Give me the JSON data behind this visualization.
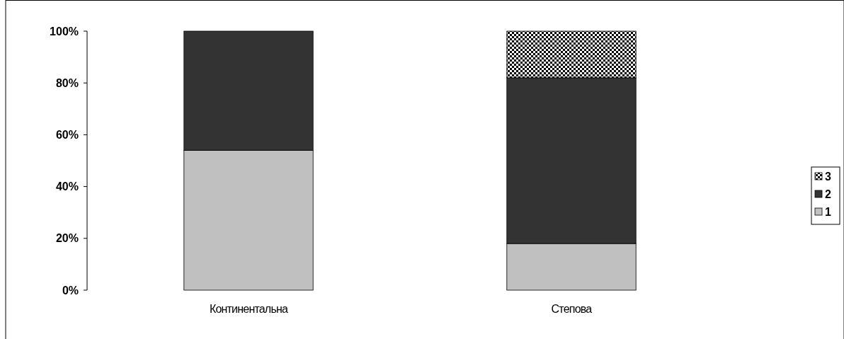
{
  "chart_data": {
    "type": "bar",
    "stacked": true,
    "categories": [
      "Континентальна",
      "Степова"
    ],
    "series": [
      {
        "name": "1",
        "color": "#c0c0c0",
        "values": [
          54,
          18
        ]
      },
      {
        "name": "2",
        "color": "#333333",
        "values": [
          46,
          64
        ]
      },
      {
        "name": "3",
        "color": "#000000",
        "values": [
          0,
          18
        ]
      }
    ],
    "ylim": [
      0,
      100
    ],
    "yticks": [
      {
        "value": 0,
        "label": "0%"
      },
      {
        "value": 20,
        "label": "20%"
      },
      {
        "value": 40,
        "label": "40%"
      },
      {
        "value": 60,
        "label": "60%"
      },
      {
        "value": 80,
        "label": "80%"
      },
      {
        "value": 100,
        "label": "100%"
      }
    ],
    "grid": false,
    "legend": "right"
  }
}
